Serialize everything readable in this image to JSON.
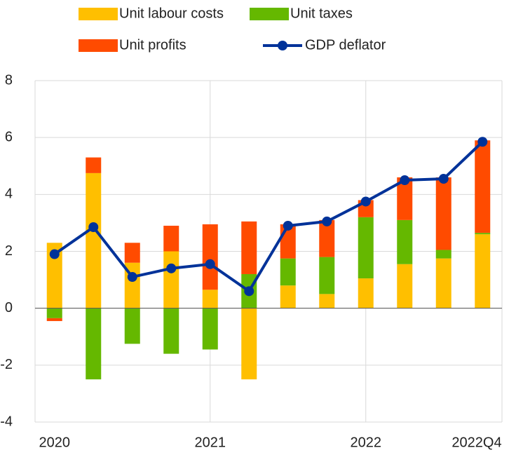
{
  "chart_data": {
    "type": "bar",
    "stacked": true,
    "categories": [
      "2020",
      null,
      null,
      null,
      "2021",
      null,
      null,
      null,
      "2022",
      null,
      null,
      "2022Q4"
    ],
    "series": [
      {
        "name": "Unit labour costs",
        "color": "#ffbf00",
        "values": [
          2.3,
          4.75,
          1.6,
          2.0,
          0.65,
          -2.5,
          0.8,
          0.5,
          1.05,
          1.55,
          1.75,
          2.6
        ]
      },
      {
        "name": "Unit taxes",
        "color": "#65b800",
        "values": [
          -0.35,
          -2.5,
          -1.25,
          -1.6,
          -1.45,
          1.2,
          0.95,
          1.3,
          2.15,
          1.55,
          0.3,
          0.05
        ]
      },
      {
        "name": "Unit profits",
        "color": "#ff4b00",
        "values": [
          -0.1,
          0.55,
          0.7,
          0.9,
          2.3,
          1.85,
          1.2,
          1.3,
          0.6,
          1.5,
          2.55,
          3.25
        ]
      },
      {
        "name": "GDP deflator",
        "color": "#003299",
        "type": "line",
        "values": [
          1.9,
          2.85,
          1.1,
          1.4,
          1.55,
          0.6,
          2.9,
          3.05,
          3.75,
          4.5,
          4.55,
          5.85
        ]
      }
    ],
    "ylim": [
      -4,
      8
    ],
    "yticks": [
      -4,
      -2,
      0,
      2,
      4,
      6,
      8
    ],
    "grid": true,
    "legend": "top"
  }
}
